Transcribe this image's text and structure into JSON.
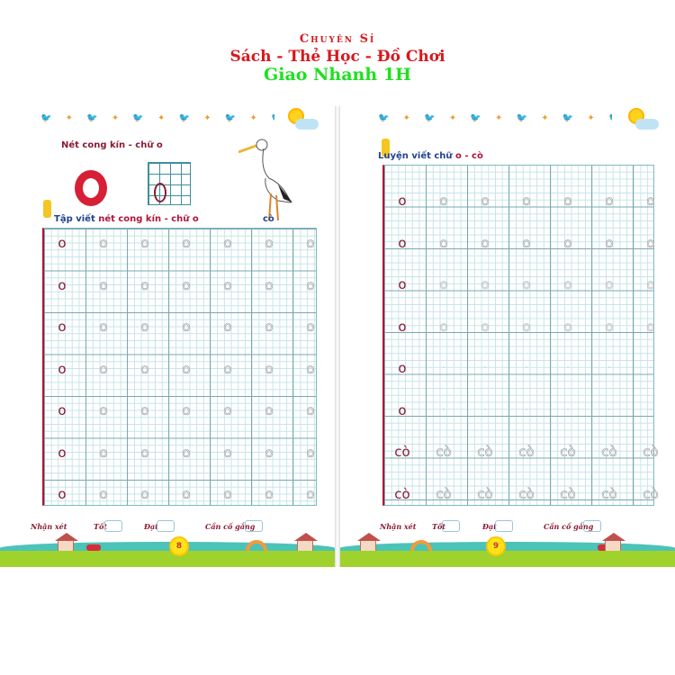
{
  "header": {
    "line1": "Chuyên Sỉ",
    "line2": "Sách - Thẻ Học - Đồ Chơi",
    "line3": "Giao Nhanh 1H"
  },
  "colors": {
    "red": "#d8181c",
    "green": "#1fe01f",
    "maroon": "#8b1a33",
    "navy": "#23438f",
    "grid": "#7aa8b0"
  },
  "left_page": {
    "section_title": "Nét cong kín - chữ o",
    "practice_title_prefix": "Tập viết ",
    "practice_title_highlight": "nét cong kín - chữ o",
    "picture_word": "cò",
    "rows": [
      {
        "text": "o",
        "style": "trace"
      },
      {
        "text": "o",
        "style": "trace"
      },
      {
        "text": "o",
        "style": "trace"
      },
      {
        "text": "o",
        "style": "trace"
      },
      {
        "text": "o",
        "style": "trace"
      },
      {
        "text": "o",
        "style": "trace"
      },
      {
        "text": "o",
        "style": "trace"
      }
    ],
    "page_number": "8"
  },
  "right_page": {
    "practice_title_prefix": "Luyện viết chữ ",
    "practice_title_highlight": "o - cò",
    "rows": [
      {
        "text": "o",
        "style": "trace"
      },
      {
        "text": "o",
        "style": "trace"
      },
      {
        "text": "o",
        "style": "dotted"
      },
      {
        "text": "o",
        "style": "dotted"
      },
      {
        "text": "·",
        "style": "dots"
      },
      {
        "text": "·",
        "style": "dots"
      },
      {
        "text": "cò",
        "style": "trace"
      },
      {
        "text": "cò",
        "style": "trace"
      }
    ],
    "page_number": "9"
  },
  "footer": {
    "remark": "Nhận xét",
    "good": "Tốt",
    "pass": "Đạt",
    "try": "Cần cố gắng"
  },
  "icons": [
    "sun-icon",
    "cloud-icon",
    "bird-icon",
    "pencil-mascot-icon",
    "stork-illustration",
    "house-icon",
    "car-icon",
    "rainbow-icon"
  ]
}
